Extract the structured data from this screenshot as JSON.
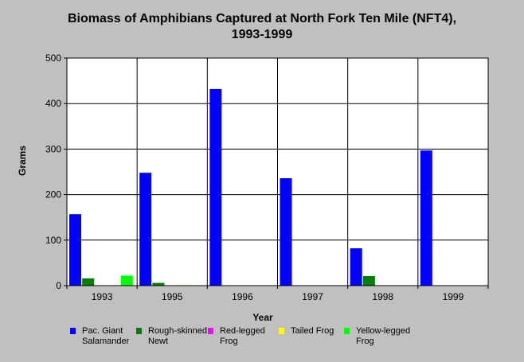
{
  "chart_data": {
    "type": "bar",
    "title": [
      "Biomass of Amphibians Captured at North Fork Ten Mile (NFT4),",
      "1993-1999"
    ],
    "xlabel": "Year",
    "ylabel": "Grams",
    "ylim": [
      0,
      500
    ],
    "yticks": [
      0,
      100,
      200,
      300,
      400,
      500
    ],
    "grid": true,
    "legend_position": "bottom",
    "categories": [
      "1993",
      "1995",
      "1996",
      "1997",
      "1998",
      "1999"
    ],
    "series": [
      {
        "name": "Pac. Giant Salamander",
        "color": "#0000ff",
        "values": [
          157,
          248,
          432,
          236,
          82,
          297
        ]
      },
      {
        "name": "Rough-skinned Newt",
        "color": "#008000",
        "values": [
          16,
          6,
          0,
          0,
          21,
          0
        ]
      },
      {
        "name": "Red-legged Frog",
        "color": "#ff00ff",
        "values": [
          0,
          0,
          0,
          0,
          0,
          0
        ]
      },
      {
        "name": "Tailed Frog",
        "color": "#ffff00",
        "values": [
          0,
          1,
          0,
          0,
          0,
          0
        ]
      },
      {
        "name": "Yellow-legged Frog",
        "color": "#00ff00",
        "values": [
          22,
          0,
          0,
          0,
          0,
          0
        ]
      }
    ]
  }
}
